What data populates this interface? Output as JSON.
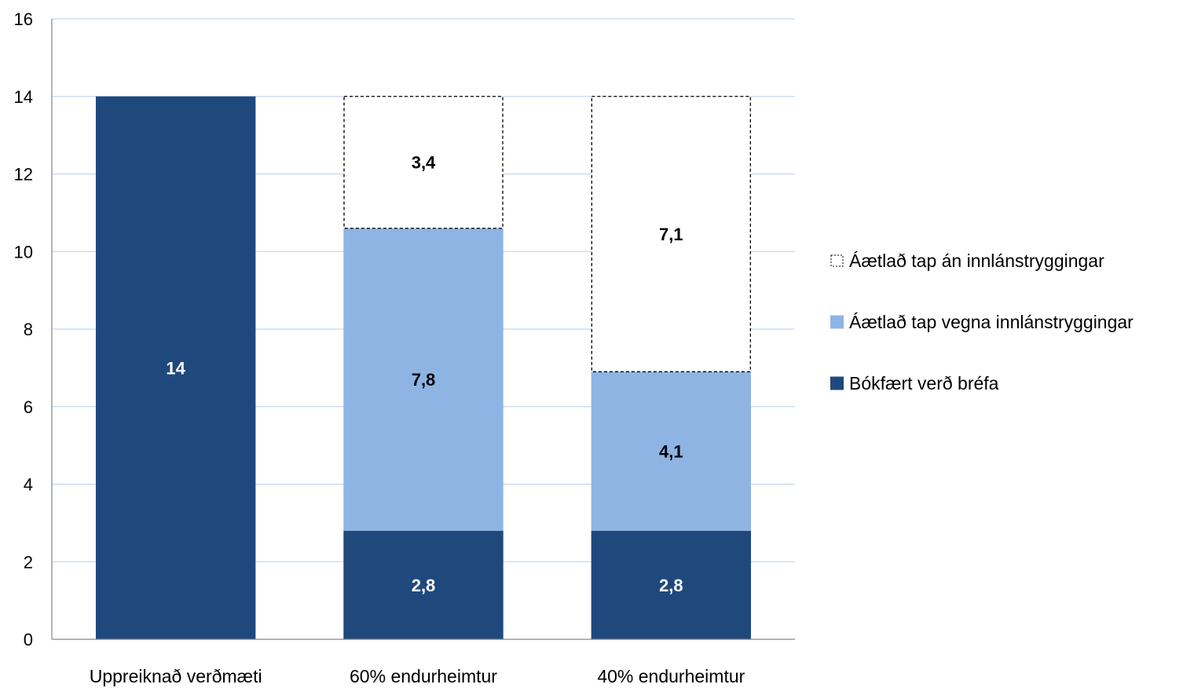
{
  "chart_data": {
    "type": "bar",
    "stacked": true,
    "categories": [
      "Uppreiknað verðmæti",
      "60% endurheimtur",
      "40% endurheimtur"
    ],
    "series": [
      {
        "name": "Bókfært verð bréfa",
        "values": [
          14,
          2.8,
          2.8
        ],
        "labels": [
          "14",
          "2,8",
          "2,8"
        ],
        "color": "#1f497d",
        "label_color": "#ffffff",
        "style": "solid"
      },
      {
        "name": "Áætlað tap vegna innlánstryggingar",
        "values": [
          0,
          7.8,
          4.1
        ],
        "labels": [
          "",
          "7,8",
          "4,1"
        ],
        "color": "#8eb4e3",
        "label_color": "#000000",
        "style": "solid"
      },
      {
        "name": "Áætlað tap án innlánstryggingar",
        "values": [
          0,
          3.4,
          7.1
        ],
        "labels": [
          "",
          "3,4",
          "7,1"
        ],
        "color": "#ffffff",
        "label_color": "#000000",
        "style": "dashed"
      }
    ],
    "ylim": [
      0,
      16
    ],
    "yticks": [
      0,
      2,
      4,
      6,
      8,
      10,
      12,
      14,
      16
    ],
    "grid": true,
    "legend_position": "right",
    "legend_order": [
      2,
      1,
      0
    ],
    "title": "",
    "xlabel": "",
    "ylabel": ""
  }
}
